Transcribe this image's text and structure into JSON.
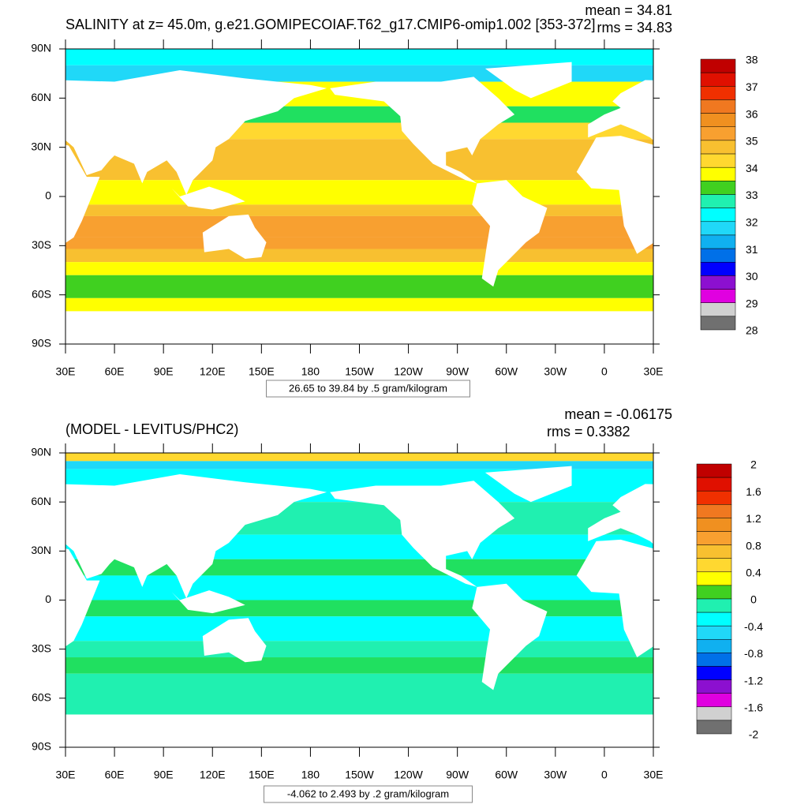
{
  "panels": [
    {
      "title": "SALINITY at z=  45.0m, g.e21.GOMIPECOIAF.T62_g17.CMIP6-omip1.002 [353-372]",
      "mean": "mean = 34.81",
      "rms": "rms = 34.83",
      "lat_labels": [
        "90N",
        "60N",
        "30N",
        "0",
        "30S",
        "60S",
        "90S"
      ],
      "lon_labels": [
        "30E",
        "60E",
        "90E",
        "120E",
        "150E",
        "180",
        "150W",
        "120W",
        "90W",
        "60W",
        "30W",
        "0",
        "30E"
      ],
      "range_note": "26.65 to 39.84 by .5 gram/kilogram",
      "colorbar": {
        "levels": [
          38,
          37,
          36,
          35,
          34,
          33,
          32,
          31,
          30,
          29,
          28
        ],
        "colors": [
          "#c00000",
          "#e01000",
          "#f03000",
          "#f07820",
          "#f09020",
          "#f8a030",
          "#f8c030",
          "#ffd830",
          "#ffff00",
          "#40d020",
          "#20e060",
          "#20f0b0",
          "#00ffff",
          "#20d8f8",
          "#10b0f0",
          "#0070e8",
          "#0000ff",
          "#8c10d0",
          "#e000e0",
          "#d0d0d0",
          "#707070"
        ]
      }
    },
    {
      "title": "(MODEL - LEVITUS/PHC2)",
      "mean": "mean = -0.06175",
      "rms": "rms = 0.3382",
      "lat_labels": [
        "90N",
        "60N",
        "30N",
        "0",
        "30S",
        "60S",
        "90S"
      ],
      "lon_labels": [
        "30E",
        "60E",
        "90E",
        "120E",
        "150E",
        "180",
        "150W",
        "120W",
        "90W",
        "60W",
        "30W",
        "0",
        "30E"
      ],
      "range_note": "-4.062 to 2.493 by .2 gram/kilogram",
      "colorbar": {
        "levels": [
          2,
          1.6,
          1.2,
          0.8,
          0.4,
          0,
          -0.4,
          -0.8,
          -1.2,
          -1.6,
          -2
        ],
        "colors": [
          "#c00000",
          "#e01000",
          "#f03000",
          "#f07820",
          "#f09020",
          "#f8a030",
          "#f8c030",
          "#ffd830",
          "#ffff00",
          "#40d020",
          "#20e060",
          "#20f0b0",
          "#00ffff",
          "#20d8f8",
          "#10b0f0",
          "#0070e8",
          "#0000ff",
          "#8c10d0",
          "#e000e0",
          "#d0d0d0",
          "#707070"
        ]
      }
    }
  ]
}
